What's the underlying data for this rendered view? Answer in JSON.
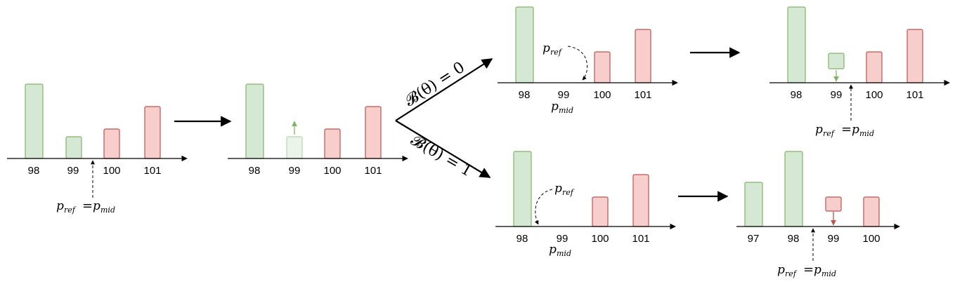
{
  "labels": {
    "p_ref": "p",
    "p_ref_sub": "ref",
    "p_mid": "p",
    "p_mid_sub": "mid",
    "equals": "=",
    "branch_top": "𝓑(θ) = 0",
    "branch_bottom": "𝓑(θ) = 1"
  },
  "panels": [
    {
      "id": "p1",
      "ticks": [
        "98",
        "99",
        "100",
        "101"
      ]
    },
    {
      "id": "p2",
      "ticks": [
        "98",
        "99",
        "100",
        "101"
      ]
    },
    {
      "id": "p3",
      "ticks": [
        "98",
        "99",
        "100",
        "101"
      ]
    },
    {
      "id": "p4",
      "ticks": [
        "98",
        "99",
        "100",
        "101"
      ]
    },
    {
      "id": "p5",
      "ticks": [
        "98",
        "99",
        "100",
        "101"
      ]
    },
    {
      "id": "p6",
      "ticks": [
        "97",
        "98",
        "99",
        "100"
      ]
    }
  ],
  "colors": {
    "bid_fill": "#d5e8d4",
    "bid_stroke": "#82b366",
    "ask_fill": "#f8cecc",
    "ask_stroke": "#b85450"
  }
}
